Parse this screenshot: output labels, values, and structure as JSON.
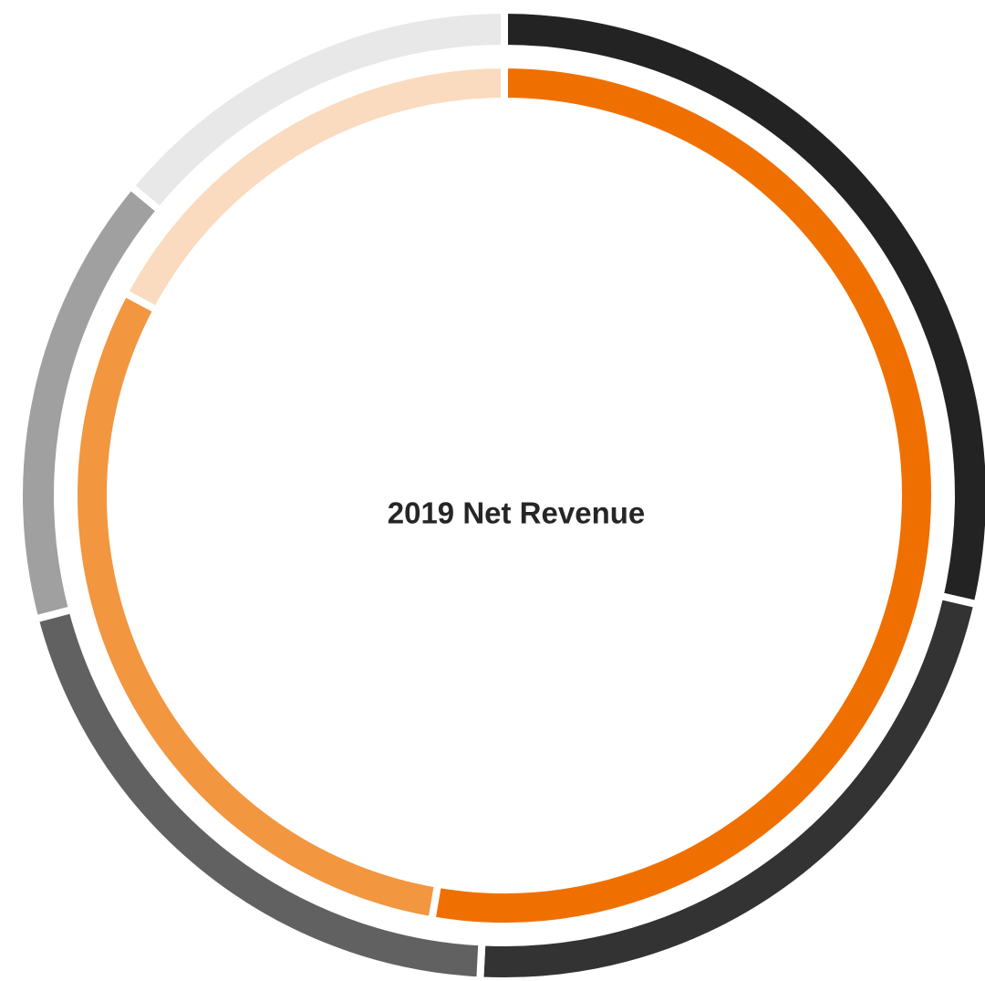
{
  "chart_data": {
    "type": "donut",
    "title": "2019 Net Revenue",
    "series": [
      {
        "colors": [
          "#232323",
          "#333333",
          "#616161",
          "#a0a0a0",
          "#e8e8e8"
        ],
        "values": [
          28.6,
          22.2,
          20.1,
          15.1,
          14.0
        ]
      },
      {
        "colors": [
          "#ef7000",
          "#f29640",
          "#fadbbf"
        ],
        "values": [
          52.7,
          30.1,
          17.2
        ]
      }
    ]
  }
}
